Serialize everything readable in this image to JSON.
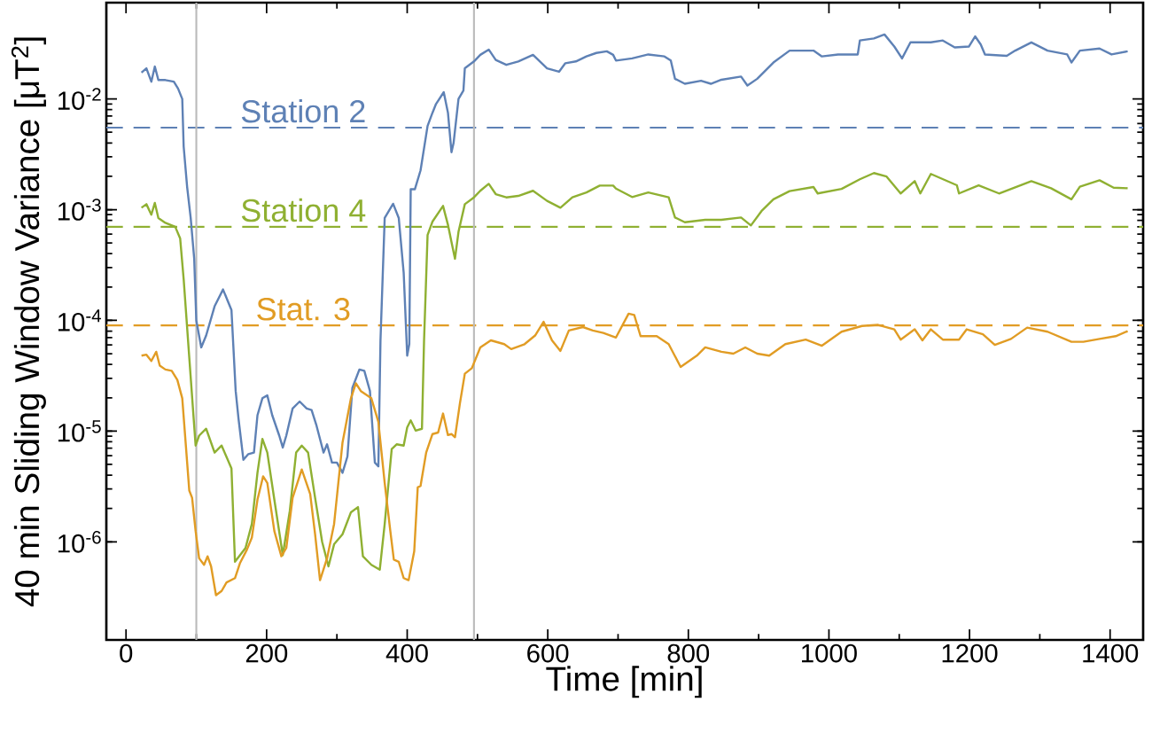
{
  "chart_data": {
    "type": "line",
    "xlabel": "Time [min]",
    "ylabel": "40 min Sliding Window Variance [μT$^{2}$]",
    "log": "y",
    "xlim": [
      -28,
      1447
    ],
    "ylim": [
      1.3e-07,
      0.074
    ],
    "xticks": [
      0,
      200,
      400,
      600,
      800,
      1000,
      1200,
      1400
    ],
    "yticks": [
      {
        "value": 1e-06,
        "label": "10$^{-6}$"
      },
      {
        "value": 1e-05,
        "label": "10$^{-5}$"
      },
      {
        "value": 0.0001,
        "label": "10$^{-4}$"
      },
      {
        "value": 0.001,
        "label": "10$^{-3}$"
      },
      {
        "value": 0.01,
        "label": "10$^{-2}$"
      }
    ],
    "ref_lines": [
      {
        "axis": "y",
        "value": 0.0055,
        "color": "#5e81b5",
        "line_style": "dashed"
      },
      {
        "axis": "y",
        "value": 0.0007,
        "color": "#8fb032",
        "line_style": "dashed"
      },
      {
        "axis": "y",
        "value": 9e-05,
        "color": "#e19c24",
        "line_style": "dashed"
      },
      {
        "axis": "x",
        "value": 100,
        "color": "#bbbbbb",
        "line_style": "solid"
      },
      {
        "axis": "x",
        "value": 495,
        "color": "#bbbbbb",
        "line_style": "solid"
      }
    ],
    "series": [
      {
        "name": "Station 2",
        "color": "#5e81b5",
        "x": [
          22,
          29,
          36,
          41,
          46,
          56,
          68,
          74,
          80,
          82,
          87,
          92,
          97,
          100,
          107,
          114,
          126,
          138,
          150,
          156,
          160,
          167,
          174,
          182,
          187,
          194,
          201,
          208,
          218,
          223,
          228,
          237,
          247,
          257,
          264,
          271,
          281,
          286,
          293,
          300,
          308,
          315,
          322,
          332,
          339,
          347,
          354,
          359,
          362,
          368,
          380,
          388,
          395,
          400,
          403,
          405,
          411,
          419,
          429,
          436,
          441,
          452,
          458,
          463,
          466,
          473,
          480,
          482,
          495,
          504,
          516,
          526,
          541,
          558,
          579,
          599,
          616,
          625,
          640,
          655,
          669,
          684,
          693,
          697,
          720,
          743,
          766,
          775,
          781,
          795,
          818,
          832,
          847,
          875,
          884,
          898,
          921,
          944,
          978,
          990,
          1013,
          1041,
          1044,
          1064,
          1079,
          1093,
          1104,
          1116,
          1145,
          1162,
          1179,
          1199,
          1208,
          1216,
          1222,
          1253,
          1265,
          1288,
          1311,
          1339,
          1345,
          1357,
          1385,
          1402,
          1425
        ],
        "values": [
          0.0173,
          0.0189,
          0.0143,
          0.0196,
          0.0148,
          0.0148,
          0.0143,
          0.0124,
          0.01,
          0.00372,
          0.00159,
          0.00084,
          0.00036,
          0.0001,
          5.7e-05,
          7.3e-05,
          0.000134,
          0.00019,
          0.000124,
          2.3e-05,
          1.3e-05,
          5.5e-06,
          6.2e-06,
          6.4e-06,
          1.39e-05,
          1.98e-05,
          2.1e-05,
          1.39e-05,
          9.1e-06,
          7.1e-06,
          9.1e-06,
          1.6e-05,
          1.85e-05,
          1.6e-05,
          1.55e-05,
          1.12e-05,
          6.4e-06,
          7.6e-06,
          5.2e-06,
          5.2e-06,
          4.2e-06,
          5.9e-06,
          2.45e-05,
          3.6e-05,
          3.5e-05,
          2.3e-05,
          5.2e-06,
          4.8e-06,
          6.6e-05,
          0.00084,
          0.00113,
          0.00084,
          0.00027,
          4.8e-05,
          6.1e-05,
          0.00153,
          0.00153,
          0.00226,
          0.0057,
          0.0075,
          0.009,
          0.0115,
          0.0075,
          0.0033,
          0.004,
          0.01,
          0.0119,
          0.0189,
          0.0218,
          0.025,
          0.0279,
          0.0225,
          0.0203,
          0.0218,
          0.025,
          0.0189,
          0.0176,
          0.021,
          0.0218,
          0.0242,
          0.026,
          0.0269,
          0.025,
          0.0222,
          0.0232,
          0.0252,
          0.0242,
          0.0222,
          0.0152,
          0.0137,
          0.0146,
          0.0137,
          0.0149,
          0.0159,
          0.0132,
          0.0152,
          0.0213,
          0.0273,
          0.0273,
          0.0242,
          0.0252,
          0.0252,
          0.0337,
          0.0352,
          0.0382,
          0.0297,
          0.0232,
          0.0324,
          0.0324,
          0.0337,
          0.0292,
          0.0297,
          0.0367,
          0.031,
          0.0252,
          0.0245,
          0.0273,
          0.0324,
          0.0273,
          0.0252,
          0.0213,
          0.0273,
          0.0285,
          0.0252,
          0.0269
        ]
      },
      {
        "name": "Station 4",
        "color": "#8fb032",
        "x": [
          22,
          29,
          36,
          41,
          46,
          56,
          70,
          77,
          82,
          90,
          99,
          104,
          114,
          126,
          136,
          150,
          155,
          170,
          179,
          187,
          194,
          201,
          211,
          223,
          233,
          242,
          250,
          259,
          269,
          279,
          288,
          296,
          308,
          320,
          330,
          337,
          349,
          361,
          368,
          378,
          385,
          395,
          400,
          405,
          412,
          421,
          424,
          429,
          436,
          451,
          458,
          463,
          468,
          473,
          482,
          495,
          504,
          516,
          526,
          541,
          558,
          579,
          599,
          618,
          635,
          655,
          674,
          693,
          697,
          720,
          743,
          772,
          781,
          795,
          824,
          847,
          875,
          889,
          904,
          921,
          944,
          978,
          984,
          1018,
          1044,
          1064,
          1082,
          1102,
          1122,
          1130,
          1145,
          1182,
          1185,
          1213,
          1242,
          1288,
          1316,
          1345,
          1357,
          1385,
          1405,
          1425
        ],
        "values": [
          0.00104,
          0.00112,
          0.0009,
          0.00115,
          0.00084,
          0.00076,
          0.0007,
          0.00055,
          0.000236,
          4.6e-05,
          7.4e-06,
          9.1e-06,
          1.05e-05,
          6.4e-06,
          7.4e-06,
          4.6e-06,
          6.6e-07,
          8.8e-07,
          1.45e-06,
          4.2e-06,
          8.5e-06,
          6.4e-06,
          2.4e-06,
          7.6e-07,
          1.9e-06,
          6.4e-06,
          7.4e-06,
          6.4e-06,
          2.5e-06,
          1e-06,
          6e-07,
          9.5e-07,
          1.17e-06,
          1.85e-06,
          2.06e-06,
          7.4e-07,
          6.2e-07,
          5.6e-07,
          1.45e-06,
          6.9e-06,
          7.6e-06,
          7.4e-06,
          1.08e-05,
          1.25e-05,
          1.01e-05,
          1.05e-05,
          6.6e-05,
          0.00059,
          0.00078,
          0.00108,
          0.00073,
          0.00051,
          0.00036,
          0.00063,
          0.00112,
          0.00129,
          0.00148,
          0.00171,
          0.00138,
          0.00129,
          0.00133,
          0.00148,
          0.0012,
          0.00104,
          0.00129,
          0.00143,
          0.00165,
          0.00165,
          0.00155,
          0.0013,
          0.00143,
          0.00129,
          0.00085,
          0.00077,
          0.00081,
          0.00081,
          0.00085,
          0.00072,
          0.00097,
          0.00124,
          0.00147,
          0.0016,
          0.0014,
          0.00154,
          0.00188,
          0.00214,
          0.00199,
          0.0014,
          0.00181,
          0.0014,
          0.0021,
          0.00166,
          0.0014,
          0.00166,
          0.0014,
          0.00181,
          0.00156,
          0.00124,
          0.00161,
          0.00184,
          0.00158,
          0.00156
        ]
      },
      {
        "name": "Stat. 3",
        "color": "#e19c24",
        "x": [
          22,
          29,
          36,
          43,
          48,
          56,
          65,
          73,
          80,
          90,
          94,
          99,
          104,
          111,
          116,
          121,
          128,
          136,
          143,
          155,
          162,
          172,
          179,
          187,
          195,
          201,
          211,
          221,
          228,
          237,
          250,
          262,
          269,
          276,
          286,
          296,
          308,
          320,
          327,
          334,
          349,
          359,
          368,
          376,
          381,
          388,
          395,
          402,
          410,
          415,
          419,
          427,
          436,
          444,
          451,
          458,
          463,
          468,
          475,
          482,
          492,
          504,
          519,
          538,
          548,
          567,
          582,
          594,
          606,
          618,
          630,
          650,
          664,
          679,
          697,
          715,
          723,
          732,
          755,
          772,
          789,
          812,
          824,
          847,
          864,
          881,
          898,
          915,
          938,
          967,
          990,
          1018,
          1047,
          1070,
          1093,
          1102,
          1122,
          1133,
          1145,
          1162,
          1185,
          1196,
          1219,
          1236,
          1259,
          1282,
          1311,
          1345,
          1362,
          1385,
          1408,
          1425
        ],
        "values": [
          4.8e-05,
          4.9e-05,
          4.3e-05,
          5.2e-05,
          3.9e-05,
          3.6e-05,
          3.5e-05,
          2.9e-05,
          1.98e-05,
          2.9e-06,
          2.5e-06,
          1.25e-06,
          7.1e-07,
          6.2e-07,
          7.4e-07,
          6e-07,
          3.3e-07,
          3.6e-07,
          4.3e-07,
          4.7e-07,
          6.4e-07,
          8.5e-07,
          1.09e-06,
          2.4e-06,
          3.9e-06,
          3.4e-06,
          1.25e-06,
          7.4e-07,
          8.8e-07,
          2.5e-06,
          4.5e-06,
          2.7e-06,
          1.17e-06,
          4.5e-07,
          7.1e-07,
          1.45e-06,
          7.9e-06,
          1.98e-05,
          2.7e-05,
          2.3e-05,
          1.98e-05,
          1.21e-05,
          3.4e-06,
          1.25e-06,
          6.9e-07,
          6.6e-07,
          4.7e-07,
          4.5e-07,
          8.2e-07,
          3.1e-06,
          3.2e-06,
          6.4e-06,
          9.4e-06,
          9.7e-06,
          1.44e-05,
          9.2e-06,
          9.4e-06,
          8.8e-06,
          1.78e-05,
          3.3e-05,
          3.7e-05,
          5.7e-05,
          6.6e-05,
          6.1e-05,
          5.5e-05,
          6.1e-05,
          7.3e-05,
          9.7e-05,
          6.6e-05,
          5.3e-05,
          8.1e-05,
          8.7e-05,
          8.1e-05,
          7.7e-05,
          7e-05,
          0.000115,
          0.000112,
          7.2e-05,
          7.2e-05,
          6.1e-05,
          3.8e-05,
          4.8e-05,
          5.7e-05,
          5.2e-05,
          5e-05,
          5.7e-05,
          5e-05,
          4.8e-05,
          6.1e-05,
          6.7e-05,
          5.9e-05,
          7.9e-05,
          8.9e-05,
          9.1e-05,
          8.3e-05,
          6.7e-05,
          8.3e-05,
          6.6e-05,
          8.3e-05,
          6.7e-05,
          6.7e-05,
          8.3e-05,
          7.5e-05,
          6e-05,
          6.8e-05,
          8.6e-05,
          7.9e-05,
          6.4e-05,
          6.4e-05,
          6.8e-05,
          7.2e-05,
          8e-05
        ]
      }
    ]
  }
}
